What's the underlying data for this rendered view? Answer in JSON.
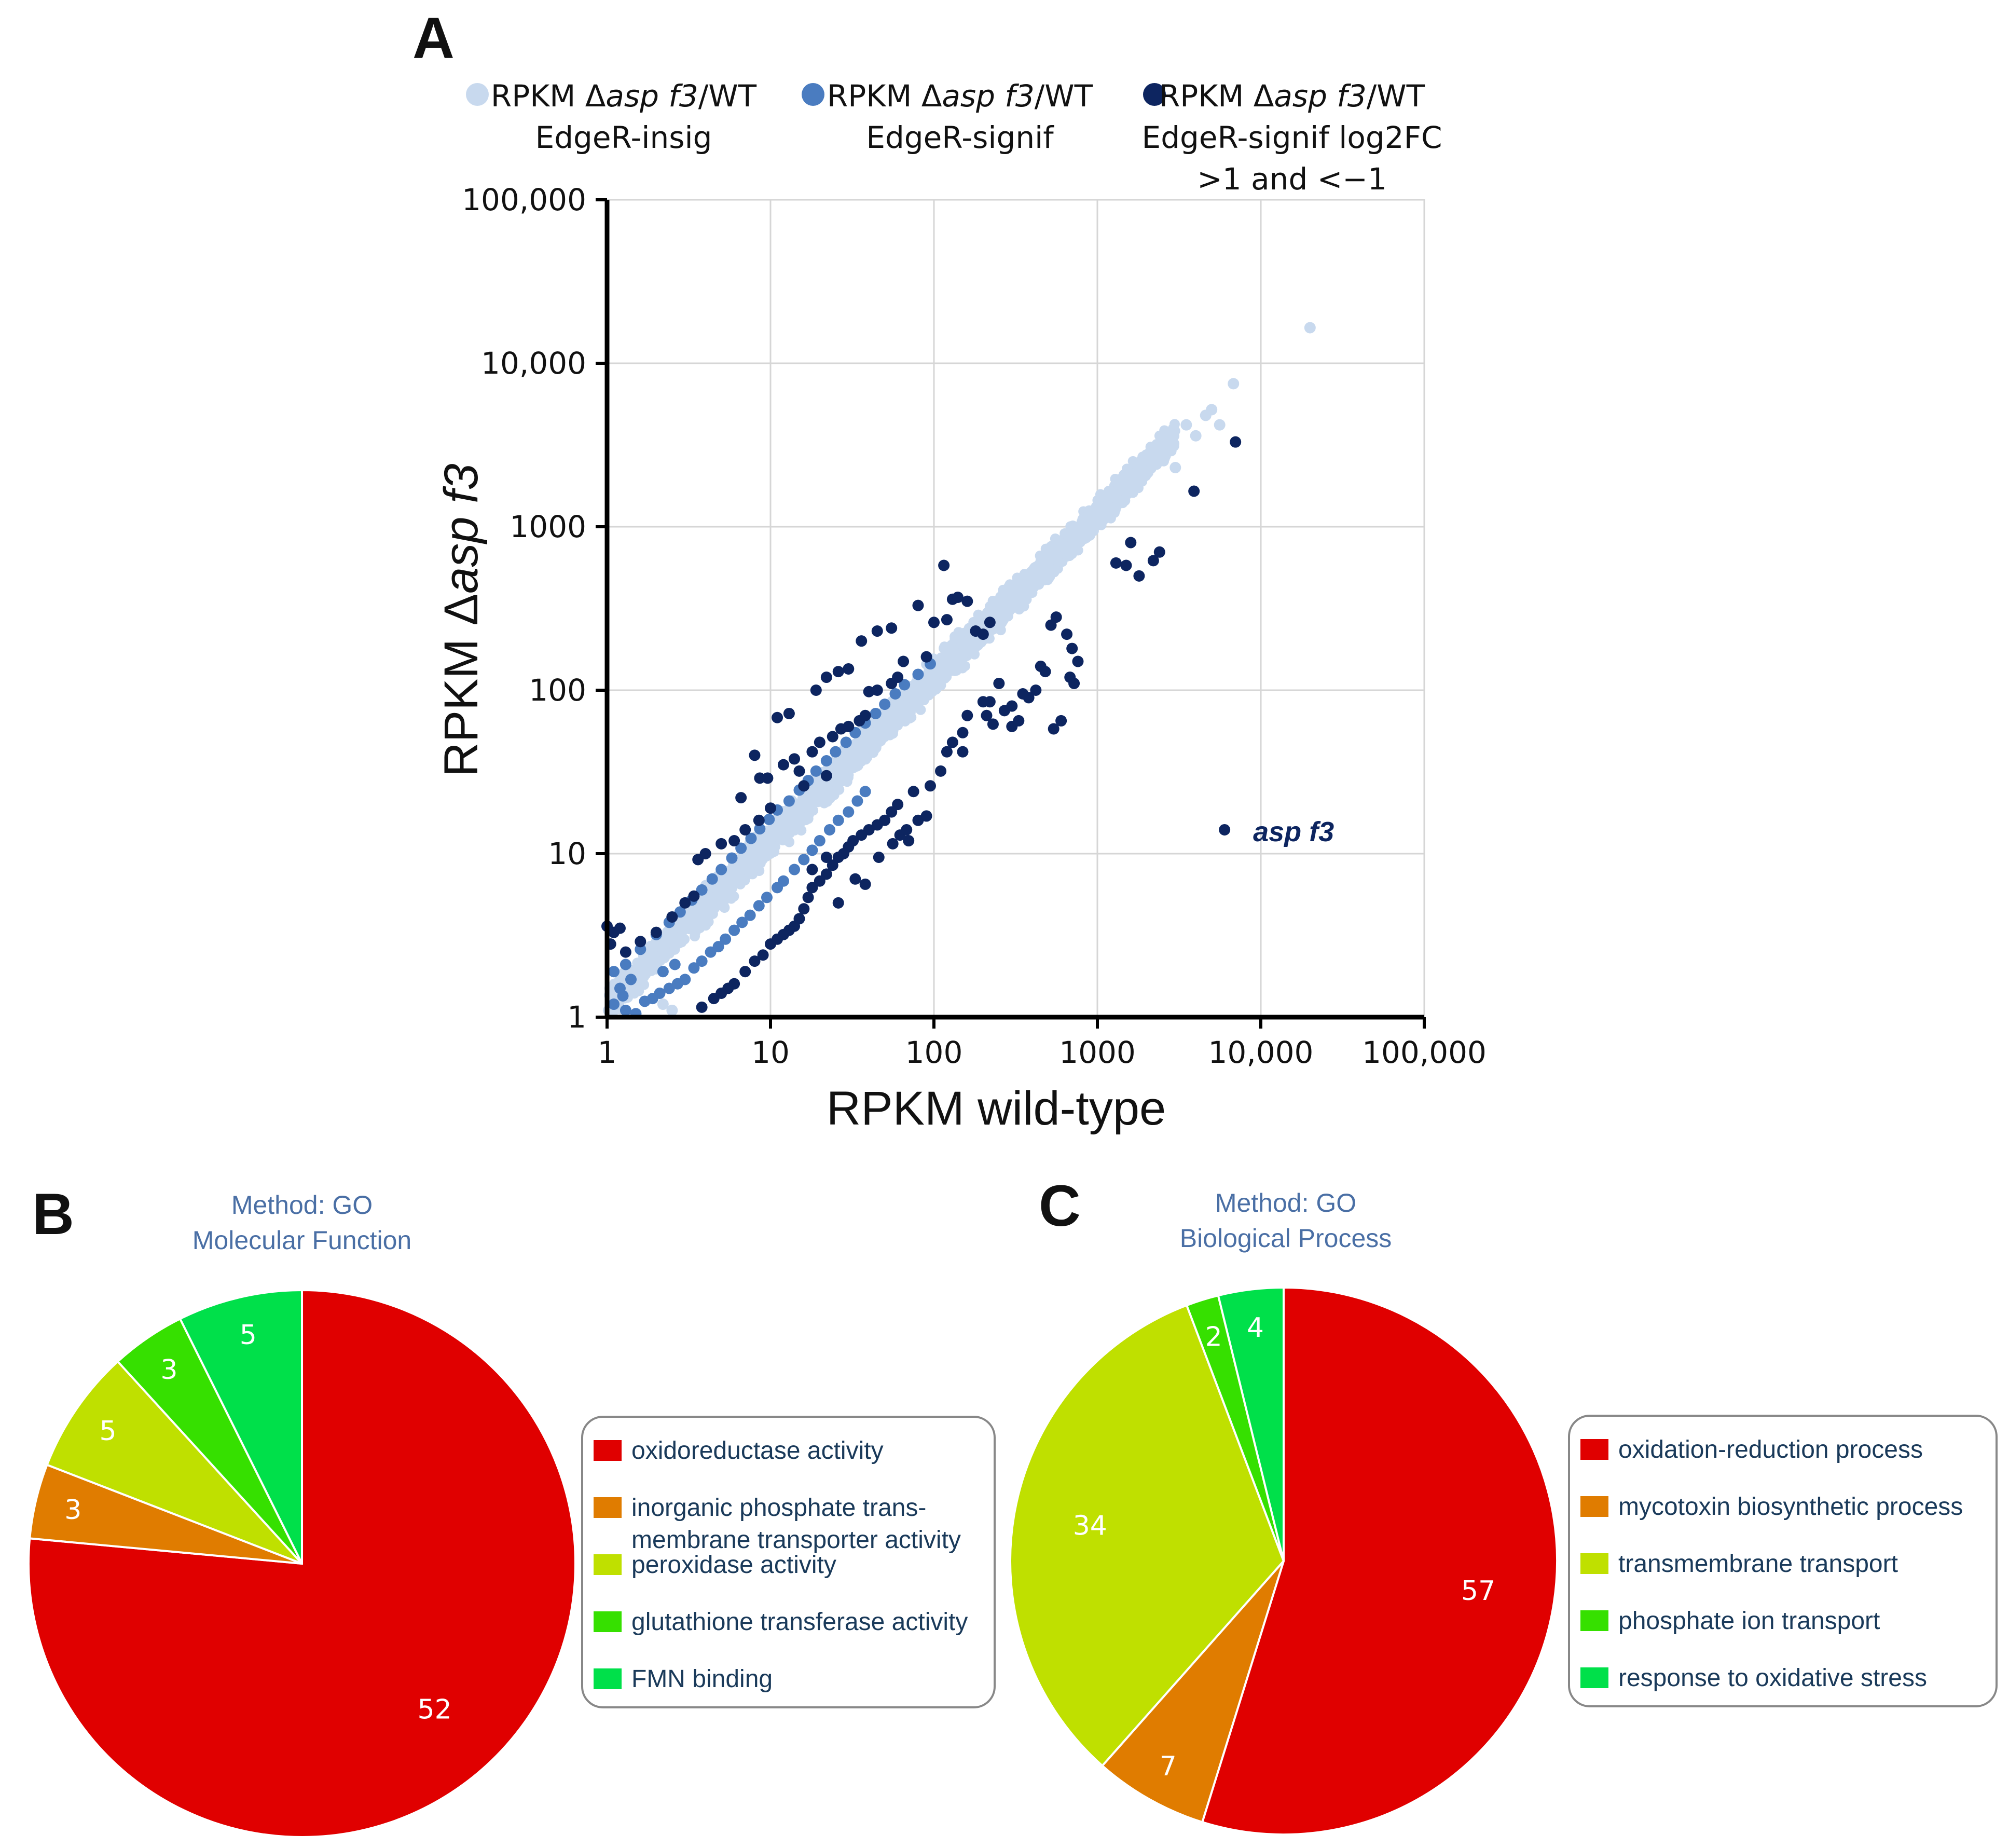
{
  "chart_data": [
    {
      "panel": "A",
      "type": "scatter",
      "scale": "log",
      "xlabel": "RPKM wild-type",
      "ylabel": {
        "prefix": "RPKM Δ",
        "italic": "asp f3"
      },
      "xlim": [
        1,
        100000
      ],
      "ylim": [
        1,
        100000
      ],
      "grid": true,
      "x_ticks": [
        {
          "value": 1,
          "label": "1"
        },
        {
          "value": 10,
          "label": "10"
        },
        {
          "value": 100,
          "label": "100"
        },
        {
          "value": 1000,
          "label": "1000"
        },
        {
          "value": 10000,
          "label": "10,000"
        },
        {
          "value": 100000,
          "label": "100,000"
        }
      ],
      "y_ticks": [
        {
          "value": 1,
          "label": "1"
        },
        {
          "value": 10,
          "label": "10"
        },
        {
          "value": 100,
          "label": "100"
        },
        {
          "value": 1000,
          "label": "1000"
        },
        {
          "value": 10000,
          "label": "10,000"
        },
        {
          "value": 100000,
          "label": "100,000"
        }
      ],
      "legend": [
        {
          "lines": [
            {
              "pre": "RPKM Δ",
              "it": "asp f3",
              "post": "/WT"
            },
            {
              "pre": "EdgeR-insig",
              "it": "",
              "post": ""
            }
          ],
          "color": "#c8d9ee"
        },
        {
          "lines": [
            {
              "pre": "RPKM Δ",
              "it": "asp f3",
              "post": "/WT"
            },
            {
              "pre": "EdgeR-signif",
              "it": "",
              "post": ""
            }
          ],
          "color": "#4a7cc0"
        },
        {
          "lines": [
            {
              "pre": "RPKM Δ",
              "it": "asp f3",
              "post": "/WT"
            },
            {
              "pre": "EdgeR-signif log2FC",
              "it": "",
              "post": ""
            },
            {
              "pre": ">1 and <−1",
              "it": "",
              "post": ""
            }
          ],
          "color": "#0d2560"
        }
      ],
      "legend_position": "top",
      "annotation": {
        "text": "asp f3",
        "x": 6000,
        "y": 14
      },
      "series": [
        {
          "name": "EdgeR-insig",
          "color": "#c8d9ee",
          "band": {
            "x_range": [
              1,
              3000
            ],
            "log_ratio_spread": 0.12
          },
          "points": [
            [
              20000,
              16500
            ],
            [
              6800,
              7500
            ],
            [
              5000,
              5200
            ],
            [
              3500,
              4200
            ],
            [
              4600,
              4800
            ],
            [
              5600,
              4200
            ],
            [
              4000,
              3600
            ],
            [
              2600,
              2800
            ],
            [
              3000,
              2300
            ],
            [
              1300,
              1500
            ],
            [
              1000,
              1050
            ],
            [
              2.2,
              1.2
            ],
            [
              2.5,
              1.1
            ],
            [
              1.8,
              2.2
            ]
          ]
        },
        {
          "name": "EdgeR-signif",
          "color": "#4a7cc0",
          "points": [
            [
              1.1,
              1.2
            ],
            [
              1.3,
              1.1
            ],
            [
              1.5,
              1.05
            ],
            [
              1.7,
              1.25
            ],
            [
              1.9,
              1.3
            ],
            [
              2.1,
              1.4
            ],
            [
              2.4,
              1.5
            ],
            [
              2.7,
              1.6
            ],
            [
              3.0,
              1.7
            ],
            [
              3.4,
              2.0
            ],
            [
              3.8,
              2.2
            ],
            [
              4.3,
              2.5
            ],
            [
              4.8,
              2.7
            ],
            [
              5.3,
              3.0
            ],
            [
              6.0,
              3.4
            ],
            [
              6.7,
              3.8
            ],
            [
              7.5,
              4.2
            ],
            [
              8.5,
              4.8
            ],
            [
              9.5,
              5.4
            ],
            [
              11,
              6.2
            ],
            [
              12,
              6.8
            ],
            [
              14,
              8.0
            ],
            [
              16,
              9.2
            ],
            [
              18,
              10.5
            ],
            [
              20,
              12
            ],
            [
              23,
              14
            ],
            [
              26,
              16
            ],
            [
              30,
              18
            ],
            [
              34,
              21
            ],
            [
              38,
              24
            ],
            [
              1.1,
              1.9
            ],
            [
              1.3,
              2.1
            ],
            [
              1.6,
              2.6
            ],
            [
              2.0,
              3.2
            ],
            [
              2.4,
              3.8
            ],
            [
              2.8,
              4.4
            ],
            [
              3.3,
              5.2
            ],
            [
              3.8,
              6.0
            ],
            [
              4.4,
              7.0
            ],
            [
              5.0,
              8.0
            ],
            [
              5.8,
              9.4
            ],
            [
              6.6,
              10.8
            ],
            [
              7.6,
              12.4
            ],
            [
              8.6,
              14.2
            ],
            [
              9.8,
              16.2
            ],
            [
              11,
              18.5
            ],
            [
              13,
              21
            ],
            [
              15,
              24.5
            ],
            [
              17,
              28
            ],
            [
              19,
              32
            ],
            [
              22,
              37
            ],
            [
              25,
              42
            ],
            [
              29,
              48
            ],
            [
              33,
              55
            ],
            [
              38,
              63
            ],
            [
              44,
              72
            ],
            [
              50,
              82
            ],
            [
              58,
              95
            ],
            [
              66,
              108
            ],
            [
              80,
              125
            ],
            [
              95,
              145
            ],
            [
              1.2,
              1.5
            ],
            [
              1.4,
              1.7
            ],
            [
              1.25,
              1.35
            ],
            [
              2.2,
              1.9
            ],
            [
              2.6,
              2.1
            ]
          ]
        },
        {
          "name": "EdgeR-signif log2FC >1 and <−1",
          "color": "#0d2560",
          "points": [
            [
              6000,
              14
            ],
            [
              7000,
              3300
            ],
            [
              3900,
              1650
            ],
            [
              2400,
              700
            ],
            [
              2200,
              620
            ],
            [
              1600,
              800
            ],
            [
              1500,
              580
            ],
            [
              1800,
              500
            ],
            [
              1300,
              600
            ],
            [
              560,
              280
            ],
            [
              520,
              250
            ],
            [
              650,
              220
            ],
            [
              700,
              180
            ],
            [
              760,
              150
            ],
            [
              680,
              120
            ],
            [
              720,
              110
            ],
            [
              600,
              65
            ],
            [
              540,
              58
            ],
            [
              420,
              100
            ],
            [
              380,
              90
            ],
            [
              330,
              65
            ],
            [
              300,
              60
            ],
            [
              450,
              140
            ],
            [
              480,
              130
            ],
            [
              250,
              110
            ],
            [
              220,
              85
            ],
            [
              200,
              85
            ],
            [
              160,
              70
            ],
            [
              150,
              55
            ],
            [
              130,
              48
            ],
            [
              120,
              42
            ],
            [
              110,
              32
            ],
            [
              95,
              26
            ],
            [
              75,
              24
            ],
            [
              60,
              20
            ],
            [
              55,
              18
            ],
            [
              50,
              16
            ],
            [
              45,
              15
            ],
            [
              40,
              14
            ],
            [
              36,
              13
            ],
            [
              32,
              12
            ],
            [
              30,
              11
            ],
            [
              28,
              10
            ],
            [
              26,
              9.5
            ],
            [
              24,
              8.5
            ],
            [
              22,
              7.5
            ],
            [
              20,
              6.8
            ],
            [
              18,
              6.2
            ],
            [
              17,
              5.4
            ],
            [
              16,
              4.6
            ],
            [
              15,
              4.0
            ],
            [
              14,
              3.6
            ],
            [
              13,
              3.4
            ],
            [
              12,
              3.2
            ],
            [
              11,
              3.0
            ],
            [
              10,
              2.8
            ],
            [
              9,
              2.4
            ],
            [
              8,
              2.2
            ],
            [
              7,
              1.9
            ],
            [
              6,
              1.6
            ],
            [
              5.5,
              1.5
            ],
            [
              5,
              1.4
            ],
            [
              4.5,
              1.3
            ],
            [
              3.8,
              1.15
            ],
            [
              46,
              9.5
            ],
            [
              56,
              11.5
            ],
            [
              62,
              13
            ],
            [
              68,
              14
            ],
            [
              80,
              16
            ],
            [
              90,
              17
            ],
            [
              38,
              6.5
            ],
            [
              26,
              5.0
            ],
            [
              33,
              7
            ],
            [
              70,
              12
            ],
            [
              22,
              9.5
            ],
            [
              18,
              8
            ],
            [
              300,
              80
            ],
            [
              350,
              95
            ],
            [
              210,
              70
            ],
            [
              230,
              62
            ],
            [
              270,
              75
            ],
            [
              150,
              42
            ],
            [
              1.0,
              3.6
            ],
            [
              1.05,
              2.8
            ],
            [
              1.1,
              3.3
            ],
            [
              1.2,
              3.5
            ],
            [
              1.3,
              2.5
            ],
            [
              1.6,
              2.9
            ],
            [
              2.0,
              3.3
            ],
            [
              2.5,
              4.1
            ],
            [
              3.0,
              5.0
            ],
            [
              3.6,
              9.2
            ],
            [
              4.0,
              10.0
            ],
            [
              5.0,
              11.5
            ],
            [
              6.0,
              12
            ],
            [
              7.0,
              14
            ],
            [
              8.5,
              16
            ],
            [
              10,
              19
            ],
            [
              9.6,
              29
            ],
            [
              8.6,
              29
            ],
            [
              12,
              35
            ],
            [
              14,
              38
            ],
            [
              15,
              32
            ],
            [
              18,
              42
            ],
            [
              20,
              48
            ],
            [
              24,
              52
            ],
            [
              27,
              58
            ],
            [
              30,
              60
            ],
            [
              35,
              65
            ],
            [
              38,
              70
            ],
            [
              8,
              40
            ],
            [
              16,
              26
            ],
            [
              22,
              30
            ],
            [
              40,
              98
            ],
            [
              45,
              100
            ],
            [
              60,
              120
            ],
            [
              65,
              150
            ],
            [
              55,
              110
            ],
            [
              90,
              160
            ],
            [
              100,
              260
            ],
            [
              120,
              270
            ],
            [
              130,
              360
            ],
            [
              140,
              370
            ],
            [
              160,
              350
            ],
            [
              180,
              230
            ],
            [
              200,
              220
            ],
            [
              220,
              260
            ],
            [
              115,
              580
            ],
            [
              80,
              330
            ],
            [
              55,
              240
            ],
            [
              45,
              230
            ],
            [
              36,
              200
            ],
            [
              30,
              135
            ],
            [
              26,
              130
            ],
            [
              22,
              120
            ],
            [
              19,
              100
            ],
            [
              13,
              72
            ],
            [
              11,
              68
            ],
            [
              3.4,
              5.5
            ],
            [
              6.6,
              22
            ]
          ]
        }
      ]
    },
    {
      "panel": "B",
      "type": "pie",
      "title_lines": [
        "Method: GO",
        "Molecular Function"
      ],
      "legend_position": "right",
      "slices": [
        {
          "label": "oxidoreductase activity",
          "value": 52,
          "color": "#e00000"
        },
        {
          "label": "inorganic phosphate trans-\nmembrane transporter activity",
          "value": 3,
          "color": "#e07c00"
        },
        {
          "label": "peroxidase activity",
          "value": 5,
          "color": "#bfe000"
        },
        {
          "label": "glutathione transferase activity",
          "value": 3,
          "color": "#36e000"
        },
        {
          "label": "FMN binding",
          "value": 5,
          "color": "#00e04a"
        }
      ]
    },
    {
      "panel": "C",
      "type": "pie",
      "title_lines": [
        "Method: GO",
        "Biological Process"
      ],
      "legend_position": "right",
      "slices": [
        {
          "label": "oxidation-reduction process",
          "value": 57,
          "color": "#e00000"
        },
        {
          "label": "mycotoxin biosynthetic process",
          "value": 7,
          "color": "#e07c00"
        },
        {
          "label": "transmembrane transport",
          "value": 34,
          "color": "#bfe000"
        },
        {
          "label": "phosphate ion transport",
          "value": 2,
          "color": "#36e000"
        },
        {
          "label": "response to oxidative stress",
          "value": 4,
          "color": "#00e04a"
        }
      ]
    }
  ],
  "labels": {
    "panel_a": "A",
    "panel_b": "B",
    "panel_c": "C"
  },
  "colors": {
    "grid": "#d6d6d6",
    "axis": "#000000",
    "method_title": "#4a6fa5",
    "legend_text": "#1a3a5a",
    "annotation": "#0d2560"
  }
}
